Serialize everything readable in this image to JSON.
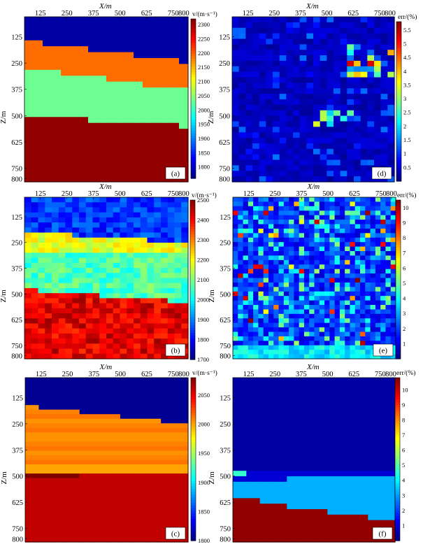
{
  "chart_data": [
    {
      "type": "heatmap",
      "tag": "(a)",
      "kind": "velocity",
      "xlabel": "X/m",
      "ylabel": "Z/m",
      "xticks": [
        "125",
        "250",
        "375",
        "500",
        "625",
        "750",
        "800"
      ],
      "yticks": [
        "125",
        "250",
        "375",
        "500",
        "625",
        "750",
        "800"
      ],
      "colorbar": {
        "label": "v/(m·s⁻¹)",
        "range": [
          1760,
          2320
        ],
        "ticks": [
          "1800",
          "1850",
          "1900",
          "1950",
          "2000",
          "2050",
          "2100",
          "2150",
          "2200",
          "2250",
          "2300"
        ]
      },
      "layers": [
        {
          "z_top": 0,
          "value": 1780
        },
        {
          "z_top": "dipping 140–250",
          "value": 2190
        },
        {
          "z_top": "dipping 260–380",
          "value": 2030
        },
        {
          "z_top": "dipping 495–545",
          "value": 2310
        }
      ]
    },
    {
      "type": "heatmap",
      "tag": "(d)",
      "kind": "error",
      "xlabel": "X/m",
      "ylabel": "Z/m",
      "xticks": [
        "125",
        "250",
        "375",
        "500",
        "625",
        "750",
        "800"
      ],
      "yticks": [
        "125",
        "250",
        "375",
        "500",
        "625",
        "750",
        "800"
      ],
      "colorbar": {
        "label": "err/(%)",
        "range": [
          0,
          5.8
        ],
        "ticks": [
          "0.5",
          "1",
          "1.5",
          "2",
          "2.5",
          "3",
          "3.5",
          "4",
          "4.5",
          "5",
          "5.5"
        ]
      }
    },
    {
      "type": "heatmap",
      "tag": "(b)",
      "kind": "velocity",
      "xlabel": "X/m",
      "ylabel": "Z/m",
      "xticks": [
        "125",
        "250",
        "375",
        "500",
        "625",
        "750",
        "800"
      ],
      "yticks": [
        "125",
        "250",
        "375",
        "500",
        "625",
        "750",
        "800"
      ],
      "colorbar": {
        "label": "v/(m·s⁻¹)",
        "range": [
          1700,
          2500
        ],
        "ticks": [
          "1700",
          "1800",
          "1900",
          "2000",
          "2100",
          "2200",
          "2300",
          "2400",
          "2500"
        ]
      }
    },
    {
      "type": "heatmap",
      "tag": "(e)",
      "kind": "error",
      "xlabel": "X/m",
      "ylabel": "Z/m",
      "xticks": [
        "125",
        "250",
        "375",
        "500",
        "625",
        "750",
        "800"
      ],
      "yticks": [
        "125",
        "250",
        "375",
        "500",
        "625",
        "750",
        "800"
      ],
      "colorbar": {
        "label": "err/(%)",
        "range": [
          0,
          10.5
        ],
        "ticks": [
          "1",
          "2",
          "3",
          "4",
          "5",
          "6",
          "7",
          "8",
          "9",
          "10"
        ]
      }
    },
    {
      "type": "heatmap",
      "tag": "(c)",
      "kind": "velocity",
      "xlabel": "X/m",
      "ylabel": "Z/m",
      "xticks": [
        "125",
        "250",
        "375",
        "500",
        "625",
        "750",
        "800"
      ],
      "yticks": [
        "125",
        "250",
        "375",
        "500",
        "625",
        "750",
        "800"
      ],
      "colorbar": {
        "label": "v/(m·s⁻¹)",
        "range": [
          1800,
          2080
        ],
        "ticks": [
          "1800",
          "1850",
          "1900",
          "1950",
          "2000",
          "2050"
        ]
      }
    },
    {
      "type": "heatmap",
      "tag": "(f)",
      "kind": "error",
      "xlabel": "X/m",
      "ylabel": "Z/m",
      "xticks": [
        "125",
        "250",
        "375",
        "500",
        "625",
        "750",
        "800"
      ],
      "yticks": [
        "125",
        "250",
        "375",
        "500",
        "625",
        "750",
        "800"
      ],
      "colorbar": {
        "label": "err/(%)",
        "range": [
          0,
          10.8
        ],
        "ticks": [
          "1",
          "2",
          "3",
          "4",
          "5",
          "6",
          "7",
          "8",
          "9",
          "10"
        ]
      }
    }
  ],
  "colors": {
    "low": "#00008f",
    "high": "#800000"
  }
}
